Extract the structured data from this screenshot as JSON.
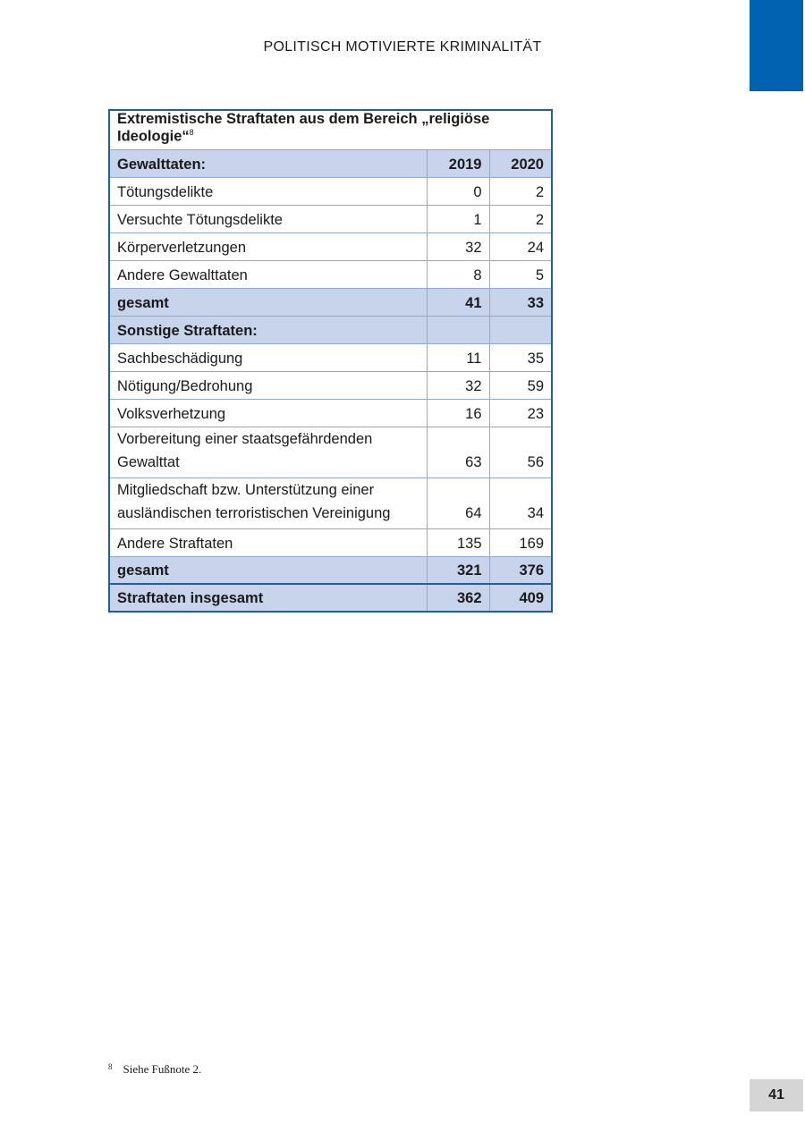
{
  "header": "POLITISCH MOTIVIERTE KRIMINALITÄT",
  "page_number": "41",
  "table": {
    "title": "Extremistische Straftaten aus dem Bereich „religiöse Ideologie“",
    "title_note": "8",
    "section1": {
      "label": "Gewalttaten:",
      "y1": "2019",
      "y2": "2020"
    },
    "rows1": [
      {
        "label": "Tötungsdelikte",
        "a": "0",
        "b": "2"
      },
      {
        "label": "Versuchte Tötungsdelikte",
        "a": "1",
        "b": "2"
      },
      {
        "label": "Körperverletzungen",
        "a": "32",
        "b": "24"
      },
      {
        "label": "Andere Gewalttaten",
        "a": "8",
        "b": "5"
      }
    ],
    "total1": {
      "label": "gesamt",
      "a": "41",
      "b": "33"
    },
    "section2": {
      "label": "Sonstige Straftaten:"
    },
    "rows2": [
      {
        "label": "Sachbeschädigung",
        "a": "11",
        "b": "35"
      },
      {
        "label": "Nötigung/Bedrohung",
        "a": "32",
        "b": "59"
      },
      {
        "label": "Volksverhetzung",
        "a": "16",
        "b": "23"
      },
      {
        "label": "Vorbereitung einer staatsgefährdenden Gewalttat",
        "a": "63",
        "b": "56"
      },
      {
        "label": "Mitgliedschaft bzw. Unterstützung einer ausländischen terroristischen Vereinigung",
        "a": "64",
        "b": "34"
      },
      {
        "label": "Andere Straftaten",
        "a": "135",
        "b": "169"
      }
    ],
    "total2": {
      "label": "gesamt",
      "a": "321",
      "b": "376"
    },
    "grand": {
      "label": "Straftaten insgesamt",
      "a": "362",
      "b": "409"
    }
  },
  "footnote": {
    "mark": "8",
    "text": "Siehe Fußnote 2."
  },
  "colors": {
    "accent": "#0062b1",
    "border": "#1f5fa8",
    "highlight": "#c8d3ec"
  }
}
